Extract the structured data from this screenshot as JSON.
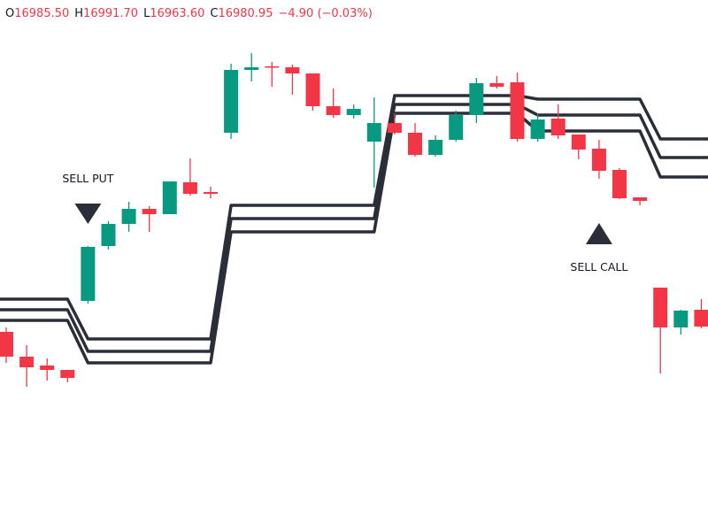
{
  "header": {
    "ohlc": [
      {
        "key": "O",
        "value": "16985.50"
      },
      {
        "key": "H",
        "value": "16991.70"
      },
      {
        "key": "L",
        "value": "16963.60"
      },
      {
        "key": "C",
        "value": "16980.95"
      }
    ],
    "change": "−4.90 (−0.03%)"
  },
  "chart_data": {
    "type": "candlestick",
    "ylim": [
      16925,
      17075
    ],
    "up_color": "#089981",
    "down_color": "#f23645",
    "line_color": "#2a2e39",
    "signal_color": "#2a2e39",
    "candles": [
      {
        "open": 16981.25,
        "high": 16982.5,
        "low": 16972.5,
        "close": 16974.25
      },
      {
        "open": 16974.25,
        "high": 16977.5,
        "low": 16965.75,
        "close": 16971.25
      },
      {
        "open": 16971.75,
        "high": 16973.75,
        "low": 16967.5,
        "close": 16970.5
      },
      {
        "open": 16970.5,
        "high": 16970.5,
        "low": 16967,
        "close": 16968.25
      },
      {
        "open": 16990,
        "high": 17005.5,
        "low": 16989.25,
        "close": 17005.25
      },
      {
        "open": 17005.5,
        "high": 17012.5,
        "low": 17004.5,
        "close": 17011.75
      },
      {
        "open": 17011.75,
        "high": 17018,
        "low": 17009.5,
        "close": 17016
      },
      {
        "open": 17016,
        "high": 17016.75,
        "low": 17009.5,
        "close": 17014.5
      },
      {
        "open": 17014.5,
        "high": 17023.75,
        "low": 17014.5,
        "close": 17023.75
      },
      {
        "open": 17023.5,
        "high": 17030.25,
        "low": 17019.75,
        "close": 17020.25
      },
      {
        "open": 17020.75,
        "high": 17022.25,
        "low": 17019,
        "close": 17020.25
      },
      {
        "open": 17037.5,
        "high": 17057,
        "low": 17035.75,
        "close": 17055.25
      },
      {
        "open": 17055.25,
        "high": 17060,
        "low": 17052,
        "close": 17056
      },
      {
        "open": 17056.25,
        "high": 17057.5,
        "low": 17050.5,
        "close": 17056
      },
      {
        "open": 17056,
        "high": 17056.75,
        "low": 17048.25,
        "close": 17054.25
      },
      {
        "open": 17054.25,
        "high": 17054.25,
        "low": 17043.75,
        "close": 17045
      },
      {
        "open": 17045,
        "high": 17050,
        "low": 17041.75,
        "close": 17042.5
      },
      {
        "open": 17042.5,
        "high": 17045.5,
        "low": 17041.5,
        "close": 17044.25
      },
      {
        "open": 17035,
        "high": 17047.5,
        "low": 17022,
        "close": 17040.25
      },
      {
        "open": 17040.25,
        "high": 17043,
        "low": 17037,
        "close": 17037.5
      },
      {
        "open": 17037.5,
        "high": 17040.25,
        "low": 17030.75,
        "close": 17031.25
      },
      {
        "open": 17031.25,
        "high": 17036.75,
        "low": 17030.75,
        "close": 17035.5
      },
      {
        "open": 17035.5,
        "high": 17043.75,
        "low": 17035,
        "close": 17042.5
      },
      {
        "open": 17042.5,
        "high": 17053,
        "low": 17040.25,
        "close": 17051.5
      },
      {
        "open": 17051.5,
        "high": 17053.5,
        "low": 17050,
        "close": 17050.5
      },
      {
        "open": 17051.75,
        "high": 17054.5,
        "low": 17035,
        "close": 17035.75
      },
      {
        "open": 17035.75,
        "high": 17043,
        "low": 17035,
        "close": 17041.25
      },
      {
        "open": 17041.5,
        "high": 17045.5,
        "low": 17035.75,
        "close": 17036.75
      },
      {
        "open": 17037,
        "high": 17037,
        "low": 17030,
        "close": 17032.75
      },
      {
        "open": 17033,
        "high": 17035.5,
        "low": 17024.5,
        "close": 17026.75
      },
      {
        "open": 17027,
        "high": 17027.5,
        "low": 17018.75,
        "close": 17019
      },
      {
        "open": 17019.25,
        "high": 17019.25,
        "low": 17017,
        "close": 17018.25
      },
      {
        "open": 16993.75,
        "high": 16993.75,
        "low": 16969.5,
        "close": 16982.5
      },
      {
        "open": 16982.5,
        "high": 16987.5,
        "low": 16980.5,
        "close": 16987.25
      },
      {
        "open": 16987.5,
        "high": 16990.5,
        "low": 16982.25,
        "close": 16982.75
      }
    ],
    "lines": [
      {
        "values": [
          16990.5,
          16990.5,
          16990.5,
          16990.5,
          16979.25,
          16979.25,
          16979.25,
          16979.25,
          16979.25,
          16979.25,
          16979.25,
          17017,
          17017,
          17017,
          17017,
          17017,
          17017,
          17017,
          17017,
          17048,
          17048,
          17048,
          17048,
          17048,
          17048,
          17048,
          17047,
          17047,
          17047,
          17047,
          17047,
          17047,
          17035.75,
          17035.75,
          17035.75
        ]
      },
      {
        "values": [
          16987.5,
          16987.5,
          16987.5,
          16987.5,
          16975.75,
          16975.75,
          16975.75,
          16975.75,
          16975.75,
          16975.75,
          16975.75,
          17013.25,
          17013.25,
          17013.25,
          17013.25,
          17013.25,
          17013.25,
          17013.25,
          17013.25,
          17045.5,
          17045.5,
          17045.5,
          17045.5,
          17045.5,
          17045.5,
          17045.5,
          17042.5,
          17042.5,
          17042.5,
          17042.5,
          17042.5,
          17042.5,
          17030.5,
          17030.5,
          17030.5
        ]
      },
      {
        "values": [
          16984.5,
          16984.5,
          16984.5,
          16984.5,
          16972.5,
          16972.5,
          16972.5,
          16972.5,
          16972.5,
          16972.5,
          16972.5,
          17009.5,
          17009.5,
          17009.5,
          17009.5,
          17009.5,
          17009.5,
          17009.5,
          17009.5,
          17043,
          17043,
          17043,
          17043,
          17043,
          17043,
          17043,
          17038,
          17038,
          17038,
          17038,
          17038,
          17038,
          17025,
          17025,
          17025
        ]
      }
    ],
    "signals": [
      {
        "label": "SELL PUT",
        "candle": 4,
        "position": "above"
      },
      {
        "label": "SELL CALL",
        "candle": 29,
        "position": "below"
      }
    ]
  }
}
